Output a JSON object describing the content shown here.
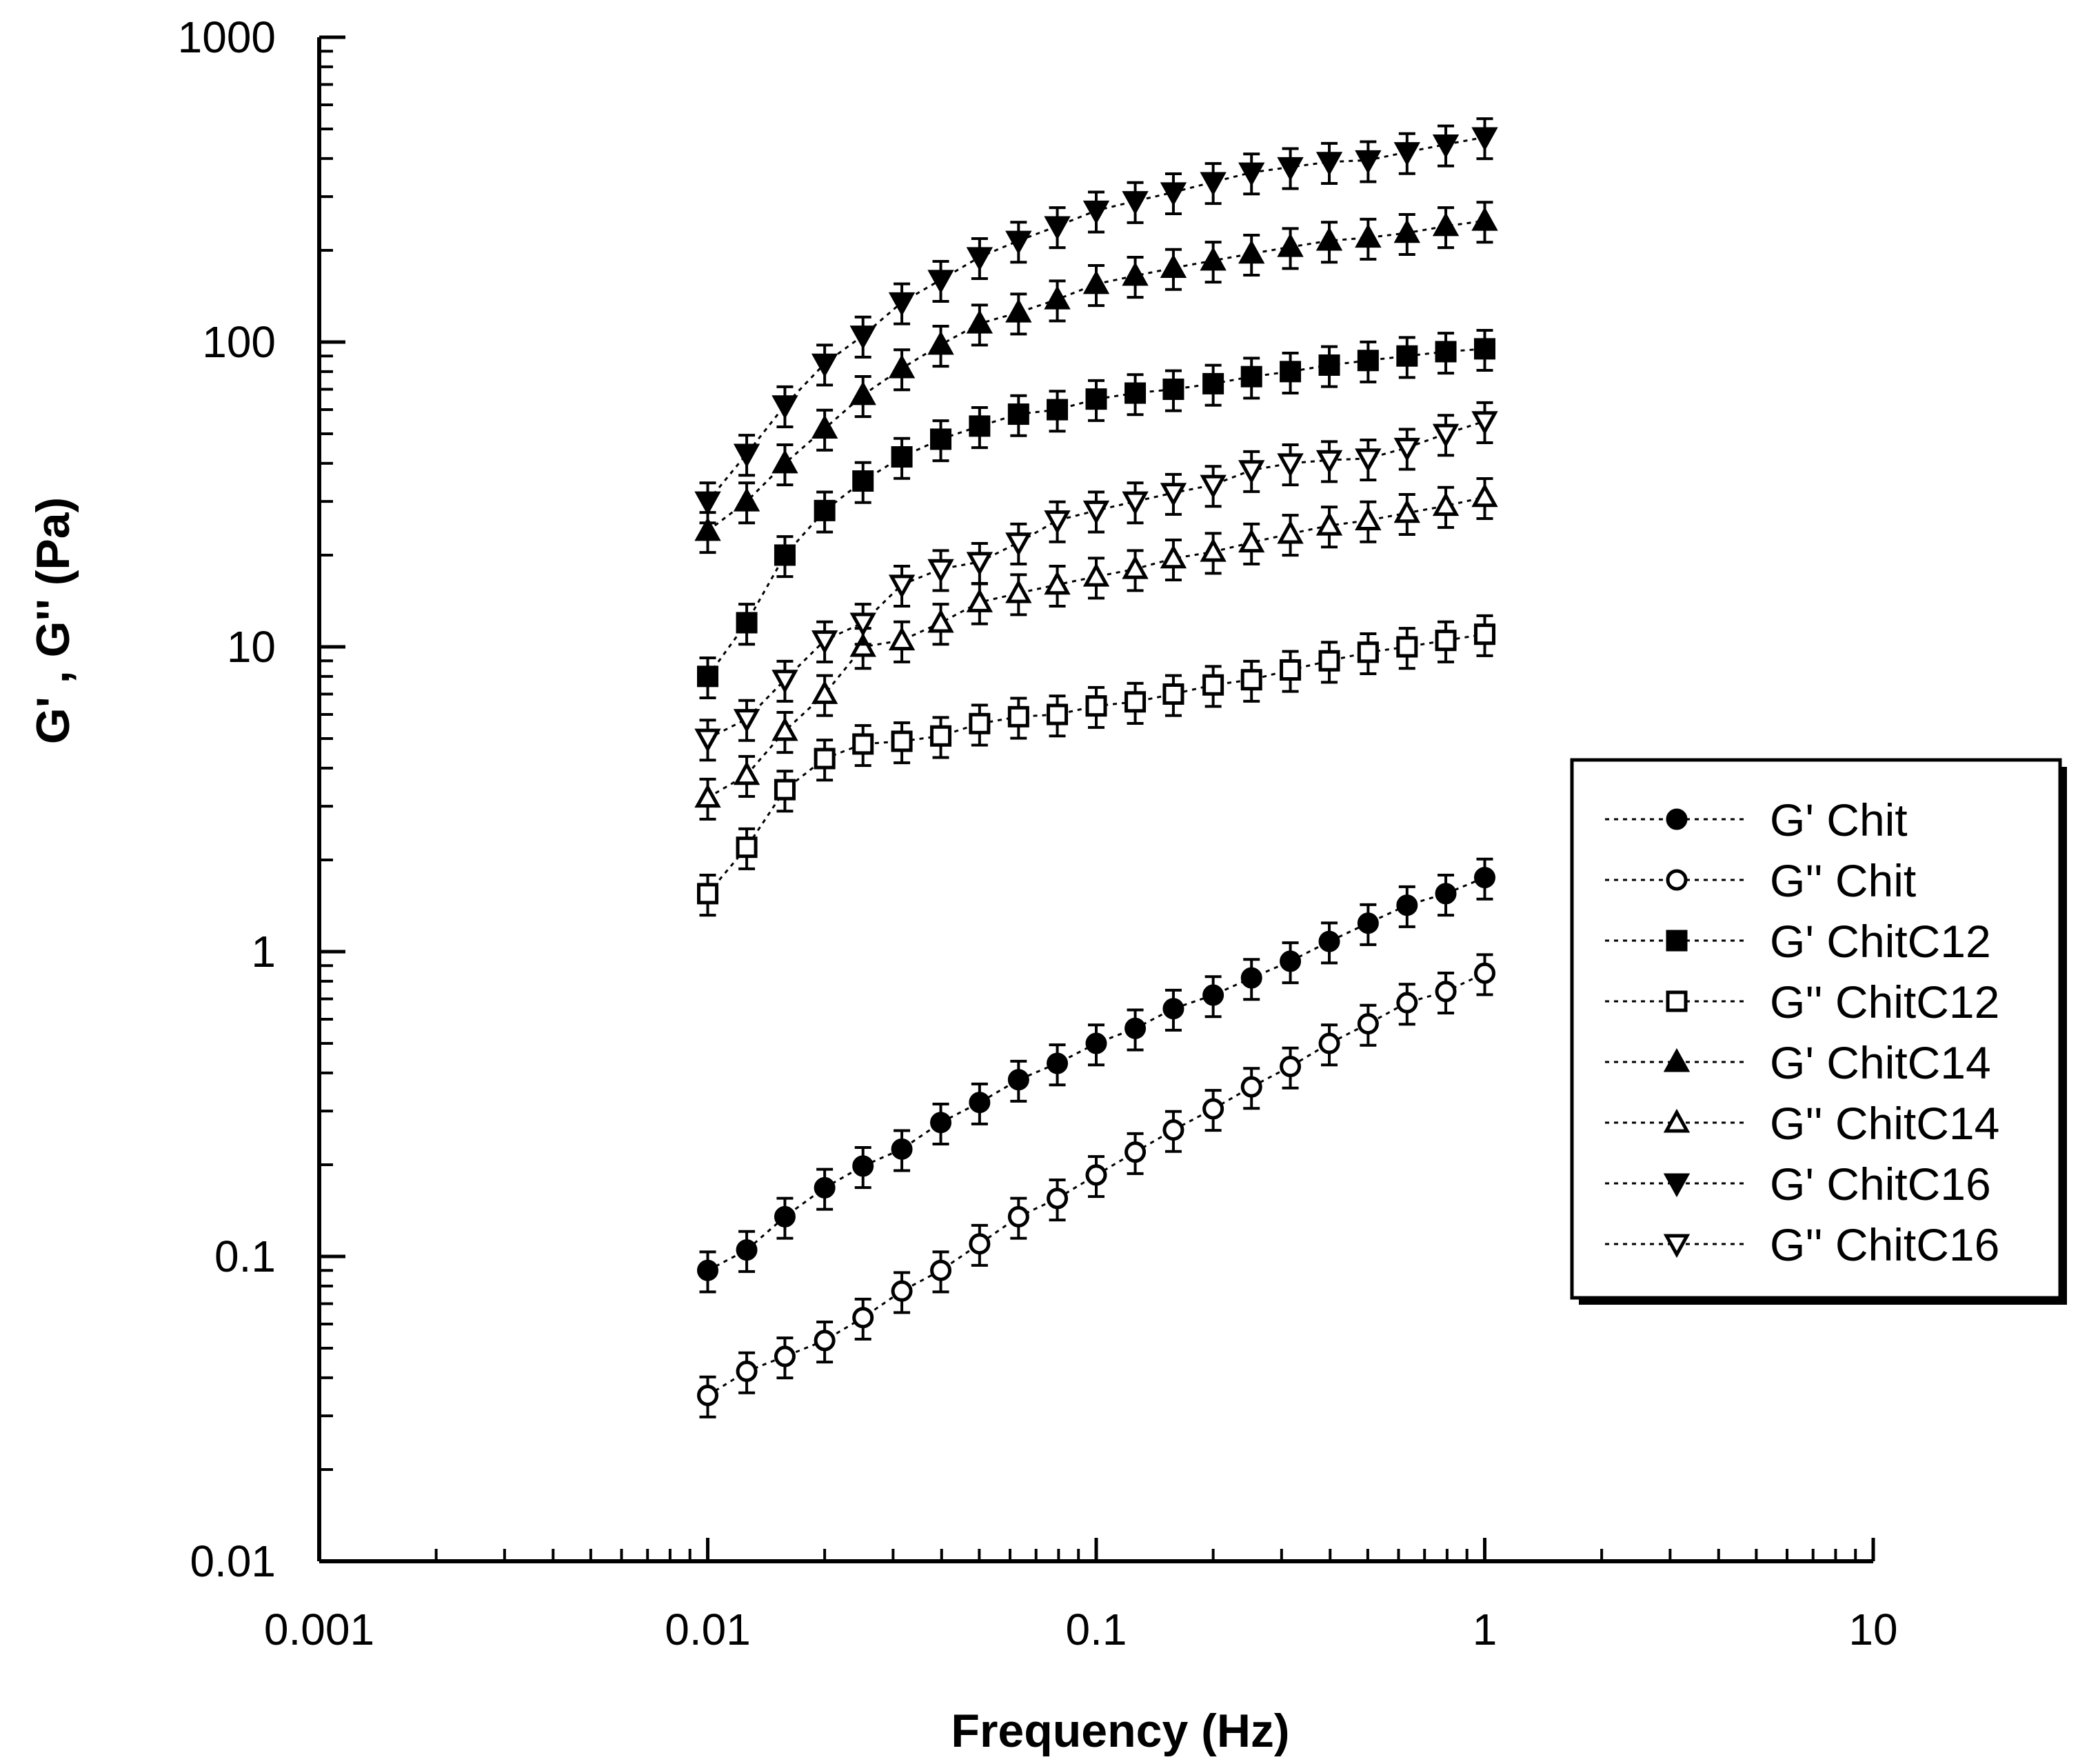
{
  "chart_data": {
    "type": "scatter",
    "xlabel": "Frequency (Hz)",
    "ylabel": "G' , G'' (Pa)",
    "xscale": "log",
    "yscale": "log",
    "xlim": [
      0.001,
      10
    ],
    "ylim": [
      0.01,
      1000
    ],
    "x_ticks": [
      "0.001",
      "0.01",
      "0.1",
      "1",
      "10"
    ],
    "y_ticks": [
      "0.01",
      "0.1",
      "1",
      "10",
      "100",
      "1000"
    ],
    "grid": false,
    "legend_position": "right",
    "line_style": "dotted",
    "x": [
      0.01,
      0.0126,
      0.0158,
      0.02,
      0.0251,
      0.0316,
      0.0398,
      0.0501,
      0.0631,
      0.0794,
      0.1,
      0.126,
      0.158,
      0.2,
      0.251,
      0.316,
      0.398,
      0.501,
      0.631,
      0.794,
      1.0
    ],
    "series": [
      {
        "name": "G' Chit",
        "marker": "circle",
        "filled": true,
        "values": [
          0.09,
          0.105,
          0.135,
          0.168,
          0.198,
          0.225,
          0.275,
          0.32,
          0.38,
          0.43,
          0.5,
          0.56,
          0.65,
          0.72,
          0.82,
          0.93,
          1.08,
          1.24,
          1.42,
          1.55,
          1.75
        ]
      },
      {
        "name": "G'' Chit",
        "marker": "circle",
        "filled": false,
        "values": [
          0.035,
          0.042,
          0.047,
          0.053,
          0.063,
          0.077,
          0.09,
          0.11,
          0.135,
          0.155,
          0.185,
          0.22,
          0.26,
          0.305,
          0.36,
          0.42,
          0.5,
          0.58,
          0.68,
          0.74,
          0.85
        ]
      },
      {
        "name": "G' ChitC12",
        "marker": "square",
        "filled": true,
        "values": [
          8.0,
          12.0,
          20.0,
          28.0,
          35.0,
          42.0,
          48.0,
          53.0,
          58.0,
          60.0,
          65.0,
          68.0,
          70.0,
          73.0,
          77.0,
          80.0,
          84.0,
          87.0,
          90.0,
          93.0,
          95.0
        ]
      },
      {
        "name": "G'' ChitC12",
        "marker": "square",
        "filled": false,
        "values": [
          1.55,
          2.2,
          3.4,
          4.3,
          4.8,
          4.9,
          5.1,
          5.6,
          5.9,
          6.0,
          6.4,
          6.6,
          7.0,
          7.5,
          7.8,
          8.4,
          9.0,
          9.6,
          10.0,
          10.5,
          11.0
        ]
      },
      {
        "name": "G' ChitC14",
        "marker": "triangle-up",
        "filled": true,
        "values": [
          24.0,
          30.0,
          40.0,
          52.0,
          67.0,
          82.0,
          98.0,
          115.0,
          125.0,
          138.0,
          155.0,
          165.0,
          175.0,
          185.0,
          195.0,
          205.0,
          215.0,
          220.0,
          228.0,
          240.0,
          250.0
        ]
      },
      {
        "name": "G'' ChitC14",
        "marker": "triangle-up",
        "filled": false,
        "values": [
          3.2,
          3.8,
          5.3,
          7.0,
          10.0,
          10.5,
          12.0,
          14.0,
          15.0,
          16.0,
          17.0,
          18.0,
          19.5,
          20.5,
          22.0,
          23.5,
          25.0,
          26.0,
          27.5,
          29.0,
          31.0
        ]
      },
      {
        "name": "G' ChitC16",
        "marker": "triangle-down",
        "filled": true,
        "values": [
          30.0,
          43.0,
          62.0,
          85.0,
          105.0,
          135.0,
          160.0,
          190.0,
          215.0,
          240.0,
          270.0,
          290.0,
          310.0,
          335.0,
          360.0,
          375.0,
          390.0,
          395.0,
          420.0,
          445.0,
          470.0
        ]
      },
      {
        "name": "G'' ChitC16",
        "marker": "triangle-down",
        "filled": false,
        "values": [
          5.0,
          5.8,
          7.8,
          10.5,
          12.0,
          16.0,
          18.0,
          19.0,
          22.0,
          26.0,
          28.0,
          30.0,
          32.0,
          34.0,
          38.0,
          40.0,
          41.0,
          41.5,
          45.0,
          50.0,
          55.0
        ]
      }
    ],
    "error_fraction": 0.15
  }
}
